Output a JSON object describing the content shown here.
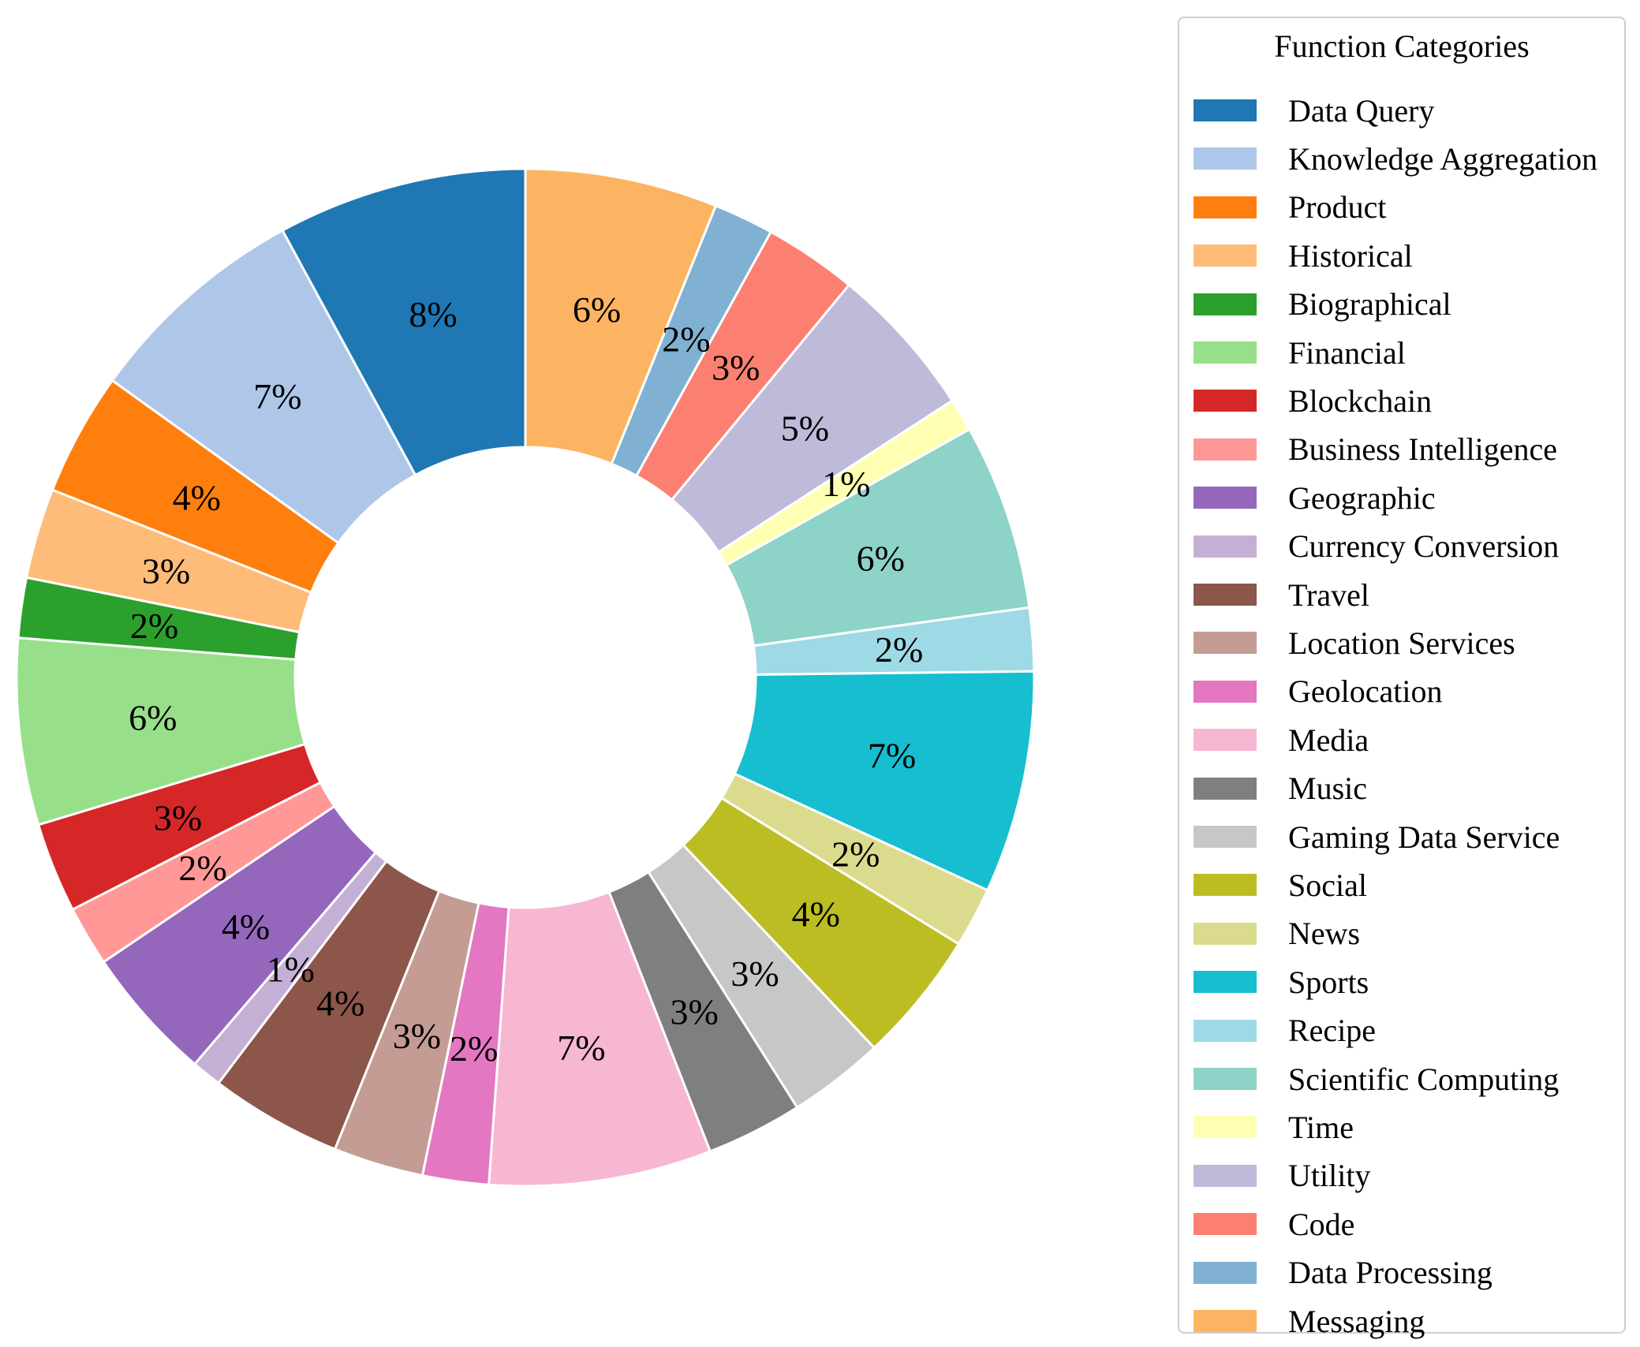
{
  "chart_data": {
    "type": "pie",
    "style": "donut",
    "legend_title": "Function Categories",
    "legend_position": "right",
    "start_angle_deg": 90,
    "direction": "clockwise-from-top",
    "slices": [
      {
        "label": "Messaging",
        "value": 6,
        "color": "#fdb462"
      },
      {
        "label": "Data Processing",
        "value": 2,
        "color": "#80b1d3"
      },
      {
        "label": "Code",
        "value": 3,
        "color": "#fb8072"
      },
      {
        "label": "Utility",
        "value": 5,
        "color": "#bebada"
      },
      {
        "label": "Time",
        "value": 1,
        "color": "#ffffb3"
      },
      {
        "label": "Scientific Computing",
        "value": 6,
        "color": "#8dd3c7"
      },
      {
        "label": "Recipe",
        "value": 2,
        "color": "#9edae5"
      },
      {
        "label": "Sports",
        "value": 7,
        "color": "#17becf"
      },
      {
        "label": "News",
        "value": 2,
        "color": "#dbdb8d"
      },
      {
        "label": "Social",
        "value": 4,
        "color": "#bcbd22"
      },
      {
        "label": "Gaming Data Service",
        "value": 3,
        "color": "#c7c7c7"
      },
      {
        "label": "Music",
        "value": 3,
        "color": "#7f7f7f"
      },
      {
        "label": "Media",
        "value": 7,
        "color": "#f7b6d2"
      },
      {
        "label": "Geolocation",
        "value": 2,
        "color": "#e377c2"
      },
      {
        "label": "Location Services",
        "value": 3,
        "color": "#c49c94"
      },
      {
        "label": "Travel",
        "value": 4,
        "color": "#8c564b"
      },
      {
        "label": "Currency Conversion",
        "value": 1,
        "color": "#c5b0d5"
      },
      {
        "label": "Geographic",
        "value": 4,
        "color": "#9467bd"
      },
      {
        "label": "Business Intelligence",
        "value": 2,
        "color": "#ff9896"
      },
      {
        "label": "Blockchain",
        "value": 3,
        "color": "#d62728"
      },
      {
        "label": "Financial",
        "value": 6,
        "color": "#98df8a"
      },
      {
        "label": "Biographical",
        "value": 2,
        "color": "#2ca02c"
      },
      {
        "label": "Historical",
        "value": 3,
        "color": "#ffbb78"
      },
      {
        "label": "Product",
        "value": 4,
        "color": "#ff7f0e"
      },
      {
        "label": "Knowledge Aggregation",
        "value": 7,
        "color": "#aec7e8"
      },
      {
        "label": "Data Query",
        "value": 8,
        "color": "#1f77b4"
      }
    ],
    "slice_weights": [
      6.4,
      2.0,
      3.1,
      5.1,
      1.1,
      6.2,
      2.1,
      7.4,
      2.0,
      4.4,
      3.2,
      3.2,
      7.4,
      2.2,
      3.0,
      4.4,
      1.0,
      4.5,
      2.0,
      3.0,
      6.2,
      2.0,
      3.0,
      4.1,
      7.5,
      8.3
    ],
    "label_format": "{value}%",
    "legend_order": [
      "Data Query",
      "Knowledge Aggregation",
      "Product",
      "Historical",
      "Biographical",
      "Financial",
      "Blockchain",
      "Business Intelligence",
      "Geographic",
      "Currency Conversion",
      "Travel",
      "Location Services",
      "Geolocation",
      "Media",
      "Music",
      "Gaming Data Service",
      "Social",
      "News",
      "Sports",
      "Recipe",
      "Scientific Computing",
      "Time",
      "Utility",
      "Code",
      "Data Processing",
      "Messaging"
    ]
  }
}
